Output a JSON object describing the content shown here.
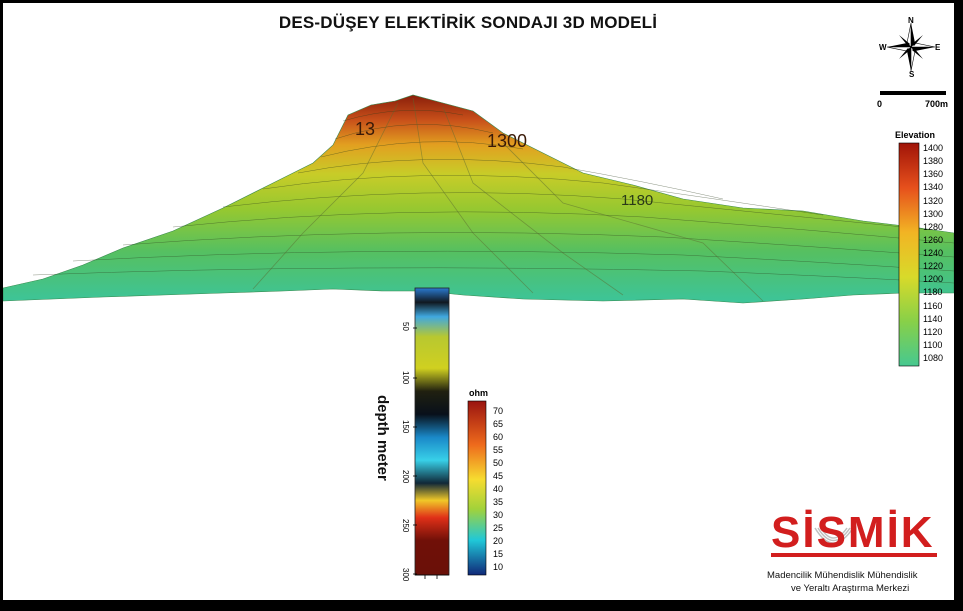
{
  "title": "DES-DÜŞEY ELEKTİRİK SONDAJI 3D MODELİ",
  "compass": {
    "icon": "compass-rose-icon",
    "n": "N",
    "s": "S",
    "e": "E",
    "w": "W"
  },
  "scale_bar": {
    "start": "0",
    "end": "700m"
  },
  "terrain_labels": [
    "13",
    "1300",
    "1180"
  ],
  "elevation_colorbar": {
    "title": "Elevation",
    "ticks": [
      "1400",
      "1380",
      "1360",
      "1340",
      "1320",
      "1300",
      "1280",
      "1260",
      "1240",
      "1220",
      "1200",
      "1180",
      "1160",
      "1140",
      "1120",
      "1100",
      "1080"
    ]
  },
  "resistivity_colorbar": {
    "title": "ohm",
    "ticks": [
      "70",
      "65",
      "60",
      "55",
      "50",
      "45",
      "40",
      "35",
      "30",
      "25",
      "20",
      "15",
      "10"
    ]
  },
  "depth_axis": {
    "title": "depth meter",
    "ticks": [
      "50",
      "100",
      "150",
      "200",
      "250",
      "300"
    ]
  },
  "logo": {
    "text": "SİSMİK",
    "line1": "Madencilik Mühendislik Mühendislik",
    "line2": "ve Yeraltı Araştırma Merkezi"
  }
}
